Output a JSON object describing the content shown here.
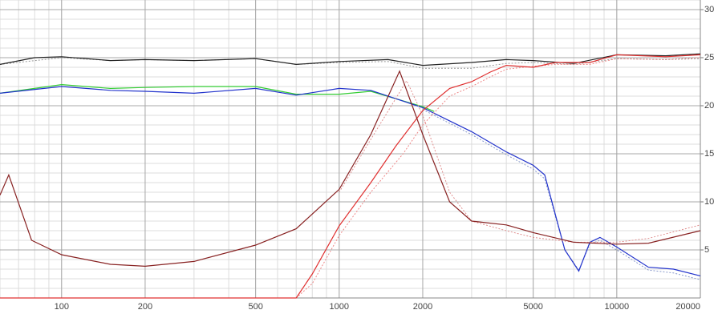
{
  "chart_data": {
    "type": "line",
    "xscale": "log",
    "xlim": [
      60,
      20000
    ],
    "ylim": [
      0,
      31
    ],
    "xticks": [
      100,
      200,
      500,
      1000,
      2000,
      5000,
      10000,
      20000
    ],
    "yticks": [
      5,
      10,
      15,
      20,
      25,
      30
    ],
    "grid": true,
    "minor_grid": true,
    "series": [
      {
        "color": "#999999",
        "dash": true,
        "x": [
          60,
          100,
          150,
          200,
          300,
          500,
          700,
          1000,
          1500,
          2000,
          3000,
          4000,
          5000,
          7000,
          10000,
          15000,
          20000
        ],
        "values": [
          24.3,
          25.0,
          24.7,
          24.8,
          24.7,
          24.9,
          24.3,
          24.5,
          24.6,
          23.9,
          23.9,
          24.4,
          24.5,
          24.3,
          24.9,
          24.8,
          24.9
        ]
      },
      {
        "color": "#222222",
        "dash": false,
        "x": [
          60,
          80,
          100,
          150,
          200,
          300,
          500,
          700,
          1000,
          1500,
          2000,
          3000,
          4000,
          5000,
          7000,
          10000,
          15000,
          20000
        ],
        "values": [
          24.3,
          25.0,
          25.1,
          24.7,
          24.8,
          24.7,
          24.9,
          24.3,
          24.6,
          24.8,
          24.2,
          24.5,
          24.8,
          24.7,
          24.4,
          25.3,
          25.2,
          25.4
        ]
      },
      {
        "color": "#33cc33",
        "dash": false,
        "x": [
          60,
          100,
          150,
          200,
          300,
          500,
          700,
          1000,
          1300,
          2000,
          2200
        ],
        "values": [
          21.3,
          22.2,
          21.8,
          21.9,
          22.0,
          22.0,
          21.2,
          21.2,
          21.5,
          19.9,
          19.4
        ]
      },
      {
        "color": "#8899cc",
        "dash": true,
        "x": [
          2000,
          3000,
          4000,
          5000,
          5500,
          6500,
          7300,
          8000,
          8700,
          10000,
          13000,
          16000,
          20000
        ],
        "values": [
          19.6,
          17.0,
          14.9,
          13.4,
          12.4,
          5.0,
          2.9,
          5.6,
          6.0,
          5.0,
          2.9,
          2.6,
          1.9
        ]
      },
      {
        "color": "#2233cc",
        "dash": false,
        "x": [
          60,
          100,
          150,
          200,
          300,
          500,
          700,
          1000,
          1300,
          2000,
          3000,
          4000,
          5000,
          5500,
          6500,
          7300,
          8000,
          8700,
          10000,
          13000,
          16000,
          20000
        ],
        "values": [
          21.3,
          22.0,
          21.6,
          21.5,
          21.3,
          21.8,
          21.1,
          21.8,
          21.6,
          19.8,
          17.3,
          15.2,
          13.8,
          12.8,
          5.0,
          2.8,
          5.8,
          6.3,
          5.3,
          3.2,
          3.0,
          2.3
        ]
      },
      {
        "color": "#ee8888",
        "dash": true,
        "x": [
          700,
          800,
          1000,
          1300,
          1700,
          2000,
          2500,
          3000,
          3500,
          4000,
          5000,
          6000,
          8000,
          10000,
          15000,
          20000
        ],
        "values": [
          0,
          1.5,
          6.5,
          11.0,
          15.0,
          18.0,
          21.0,
          22.0,
          23.0,
          23.8,
          24.1,
          24.3,
          24.3,
          24.9,
          24.8,
          25.0
        ]
      },
      {
        "color": "#e03030",
        "dash": false,
        "x": [
          60,
          700,
          800,
          1000,
          1300,
          1600,
          2000,
          2500,
          3000,
          3500,
          4000,
          5000,
          6000,
          8000,
          10000,
          15000,
          20000
        ],
        "values": [
          0,
          0,
          2.5,
          7.5,
          12.0,
          15.8,
          19.5,
          21.8,
          22.5,
          23.5,
          24.2,
          24.0,
          24.5,
          24.5,
          25.3,
          25.1,
          25.3
        ]
      },
      {
        "color": "#e09090",
        "dash": true,
        "x": [
          1000,
          1300,
          1750,
          2000,
          2500,
          3000,
          4000,
          5000,
          7000,
          10000,
          13000,
          20000
        ],
        "values": [
          11.0,
          16.5,
          22.6,
          19.0,
          11.0,
          8.0,
          7.0,
          6.3,
          5.8,
          5.8,
          6.2,
          7.6
        ]
      },
      {
        "color": "#882222",
        "dash": false,
        "x": [
          60,
          64.5,
          78,
          100,
          150,
          200,
          300,
          500,
          700,
          1000,
          1300,
          1650,
          2000,
          2500,
          3000,
          4000,
          5000,
          7000,
          10000,
          13000,
          20000
        ],
        "values": [
          10.7,
          12.8,
          6.0,
          4.5,
          3.5,
          3.3,
          3.8,
          5.5,
          7.2,
          11.3,
          17.0,
          23.6,
          17.0,
          10.0,
          8.0,
          7.6,
          6.8,
          5.8,
          5.6,
          5.7,
          7.0
        ]
      }
    ]
  }
}
